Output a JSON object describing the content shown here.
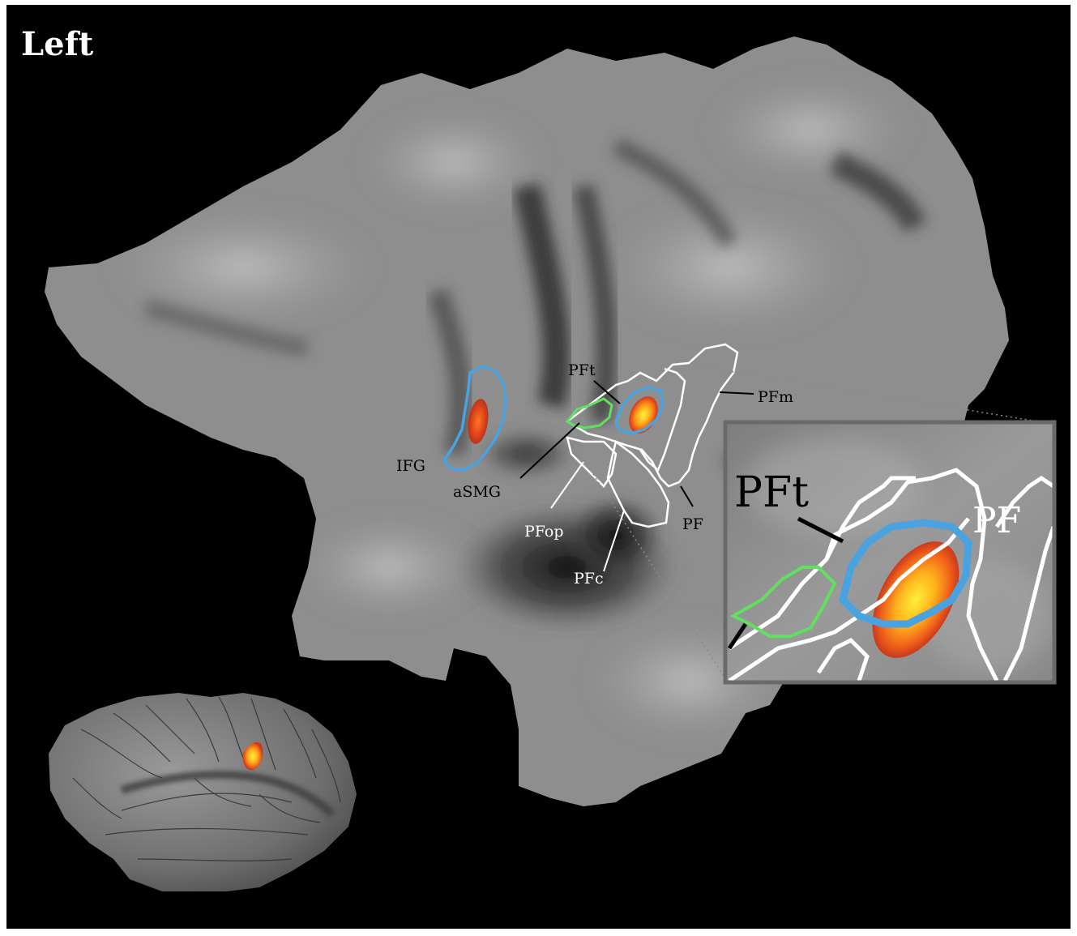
{
  "hemisphere_label": "Left",
  "labels": {
    "ifg": "IFG",
    "asmg": "aSMG",
    "pft": "PFt",
    "pfm": "PFm",
    "pfop": "PFop",
    "pfc": "PFc",
    "pf": "PF"
  },
  "inset_labels": {
    "pft": "PFt",
    "pf": "PF"
  },
  "colors": {
    "background": "#000000",
    "flatmap_gray": "#8c8c8c",
    "roi_blue": "#4aa3e0",
    "roi_green": "#5fe05f",
    "roi_white": "#ffffff",
    "activation_red": "#e03a10",
    "activation_orange": "#f58a12",
    "activation_yellow": "#ffe23a",
    "inset_frame": "#6a6a6a"
  }
}
